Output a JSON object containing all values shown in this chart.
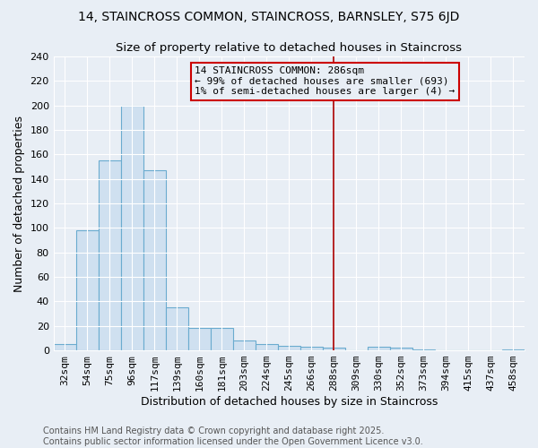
{
  "title": "14, STAINCROSS COMMON, STAINCROSS, BARNSLEY, S75 6JD",
  "subtitle": "Size of property relative to detached houses in Staincross",
  "xlabel": "Distribution of detached houses by size in Staincross",
  "ylabel": "Number of detached properties",
  "categories": [
    "32sqm",
    "54sqm",
    "75sqm",
    "96sqm",
    "117sqm",
    "139sqm",
    "160sqm",
    "181sqm",
    "203sqm",
    "224sqm",
    "245sqm",
    "266sqm",
    "288sqm",
    "309sqm",
    "330sqm",
    "352sqm",
    "373sqm",
    "394sqm",
    "415sqm",
    "437sqm",
    "458sqm"
  ],
  "values": [
    5,
    98,
    155,
    200,
    147,
    35,
    18,
    18,
    8,
    5,
    4,
    3,
    2,
    0,
    3,
    2,
    1,
    0,
    0,
    0,
    1
  ],
  "bar_fill_color": "#cfe0f0",
  "bar_edge_color": "#6aabcf",
  "vline_x_index": 12,
  "vline_color": "#aa0000",
  "annotation_text": "14 STAINCROSS COMMON: 286sqm\n← 99% of detached houses are smaller (693)\n1% of semi-detached houses are larger (4) →",
  "annotation_box_color": "#cc0000",
  "annotation_text_color": "#000000",
  "ylim": [
    0,
    240
  ],
  "yticks": [
    0,
    20,
    40,
    60,
    80,
    100,
    120,
    140,
    160,
    180,
    200,
    220,
    240
  ],
  "grid_color": "#ffffff",
  "background_color": "#e8eef5",
  "footer_line1": "Contains HM Land Registry data © Crown copyright and database right 2025.",
  "footer_line2": "Contains public sector information licensed under the Open Government Licence v3.0.",
  "title_fontsize": 10,
  "subtitle_fontsize": 9.5,
  "axis_label_fontsize": 9,
  "tick_fontsize": 8,
  "annotation_fontsize": 8,
  "footer_fontsize": 7
}
